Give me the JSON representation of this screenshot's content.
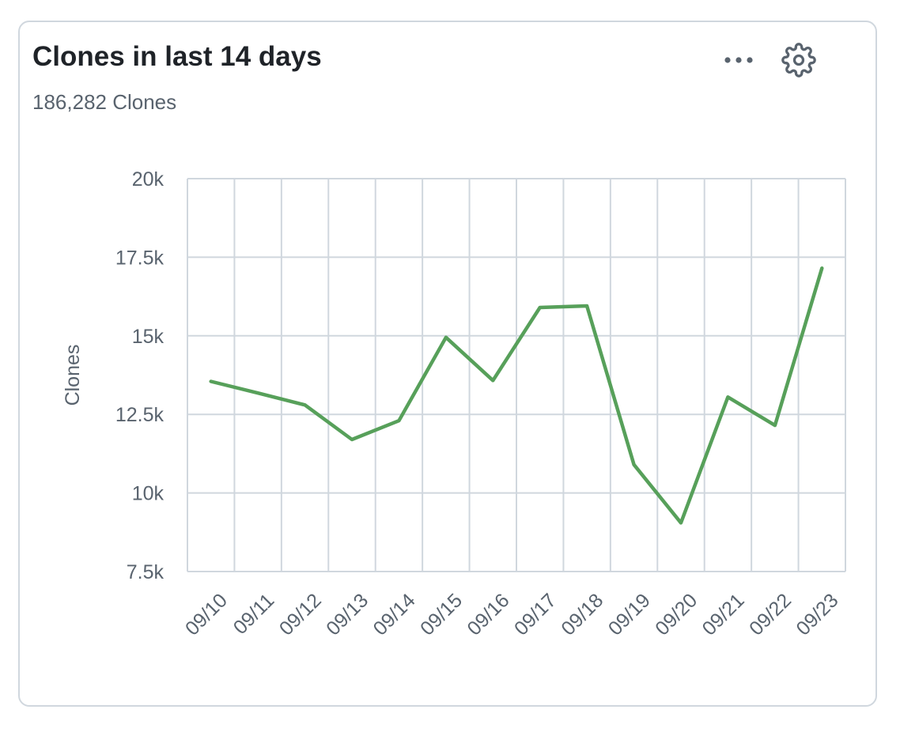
{
  "card": {
    "title": "Clones in last 14 days",
    "subtitle": "186,282 Clones",
    "more_icon": "more-horizontal-icon",
    "settings_icon": "gear-icon"
  },
  "chart_data": {
    "type": "line",
    "ylabel": "Clones",
    "ylim": [
      7500,
      20000
    ],
    "yticks": [
      7500,
      10000,
      12500,
      15000,
      17500,
      20000
    ],
    "ytick_labels": [
      "7.5k",
      "10k",
      "12.5k",
      "15k",
      "17.5k",
      "20k"
    ],
    "categories": [
      "09/10",
      "09/11",
      "09/12",
      "09/13",
      "09/14",
      "09/15",
      "09/16",
      "09/17",
      "09/18",
      "09/19",
      "09/20",
      "09/21",
      "09/22",
      "09/23"
    ],
    "values": [
      13550,
      13180,
      12800,
      11700,
      12300,
      14950,
      13580,
      15900,
      15950,
      10900,
      9050,
      13050,
      12150,
      17150
    ],
    "grid": true,
    "colors": {
      "line": "#57a05a",
      "grid": "#d0d7de",
      "text": "#59636e"
    }
  }
}
